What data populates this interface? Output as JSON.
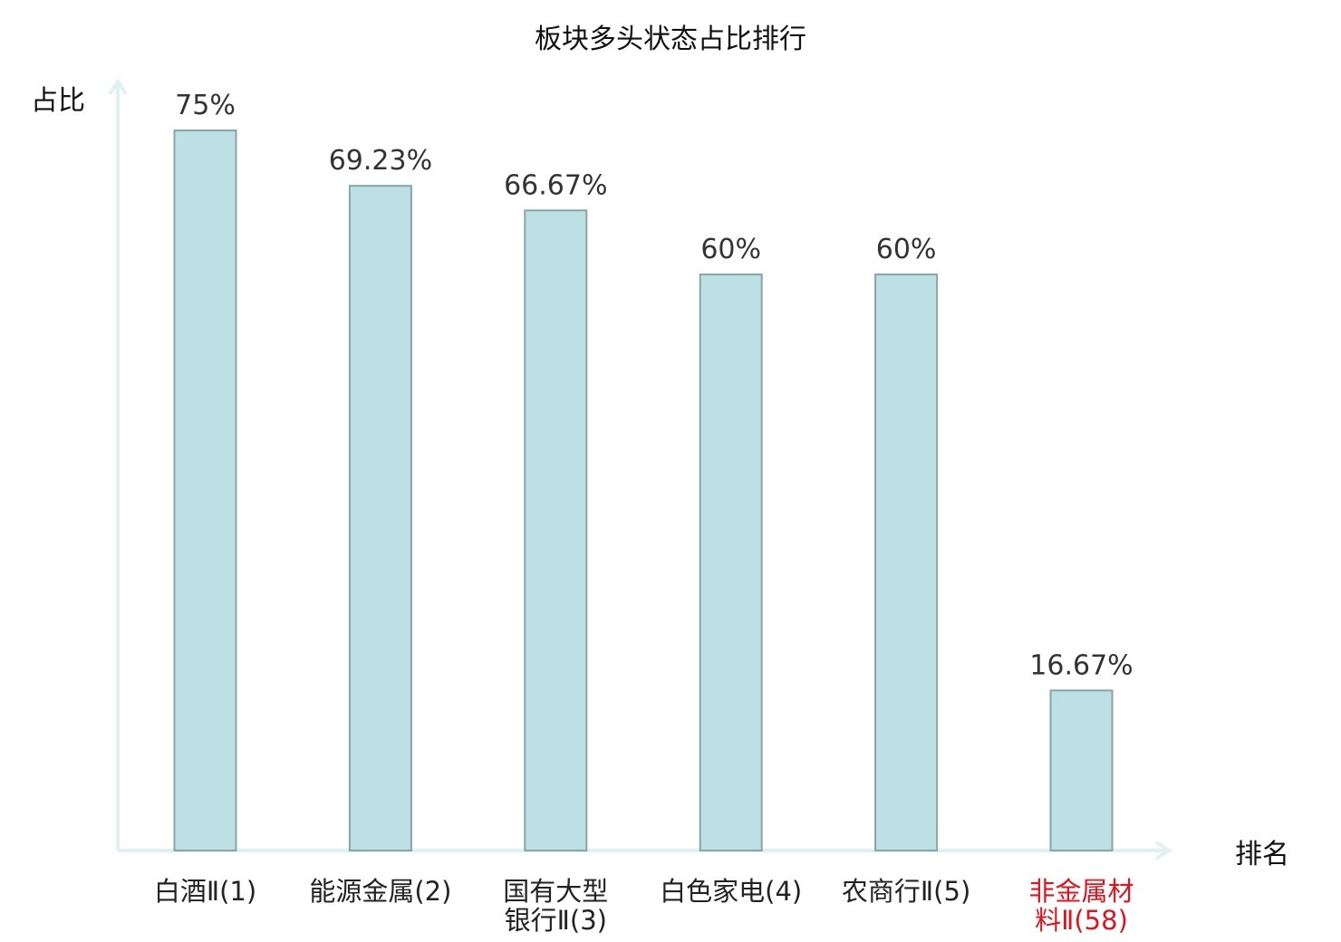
{
  "chart_data": {
    "type": "bar",
    "title": "板块多头状态占比排行",
    "ylabel": "占比",
    "xlabel": "排名",
    "ylim": [
      0,
      80
    ],
    "grid": false,
    "categories": [
      {
        "lines": [
          "白酒Ⅱ(1)"
        ]
      },
      {
        "lines": [
          "能源金属(2)"
        ]
      },
      {
        "lines": [
          "国有大型",
          "银行Ⅱ(3)"
        ]
      },
      {
        "lines": [
          "白色家电(4)"
        ]
      },
      {
        "lines": [
          "农商行Ⅱ(5)"
        ]
      },
      {
        "lines": [
          "非金属材",
          "料Ⅱ(58)"
        ],
        "highlight": true
      }
    ],
    "values": [
      75,
      69.23,
      66.67,
      60,
      60,
      16.67
    ],
    "value_labels": [
      "75%",
      "69.23%",
      "66.67%",
      "60%",
      "60%",
      "16.67%"
    ],
    "colors": {
      "bar_fill": "#bce0e3",
      "bar_stroke": "#86a6a8",
      "axis": "#dff2f0",
      "text": "#222222",
      "value_text": "#333333",
      "highlight_text": "#e0141e"
    }
  }
}
